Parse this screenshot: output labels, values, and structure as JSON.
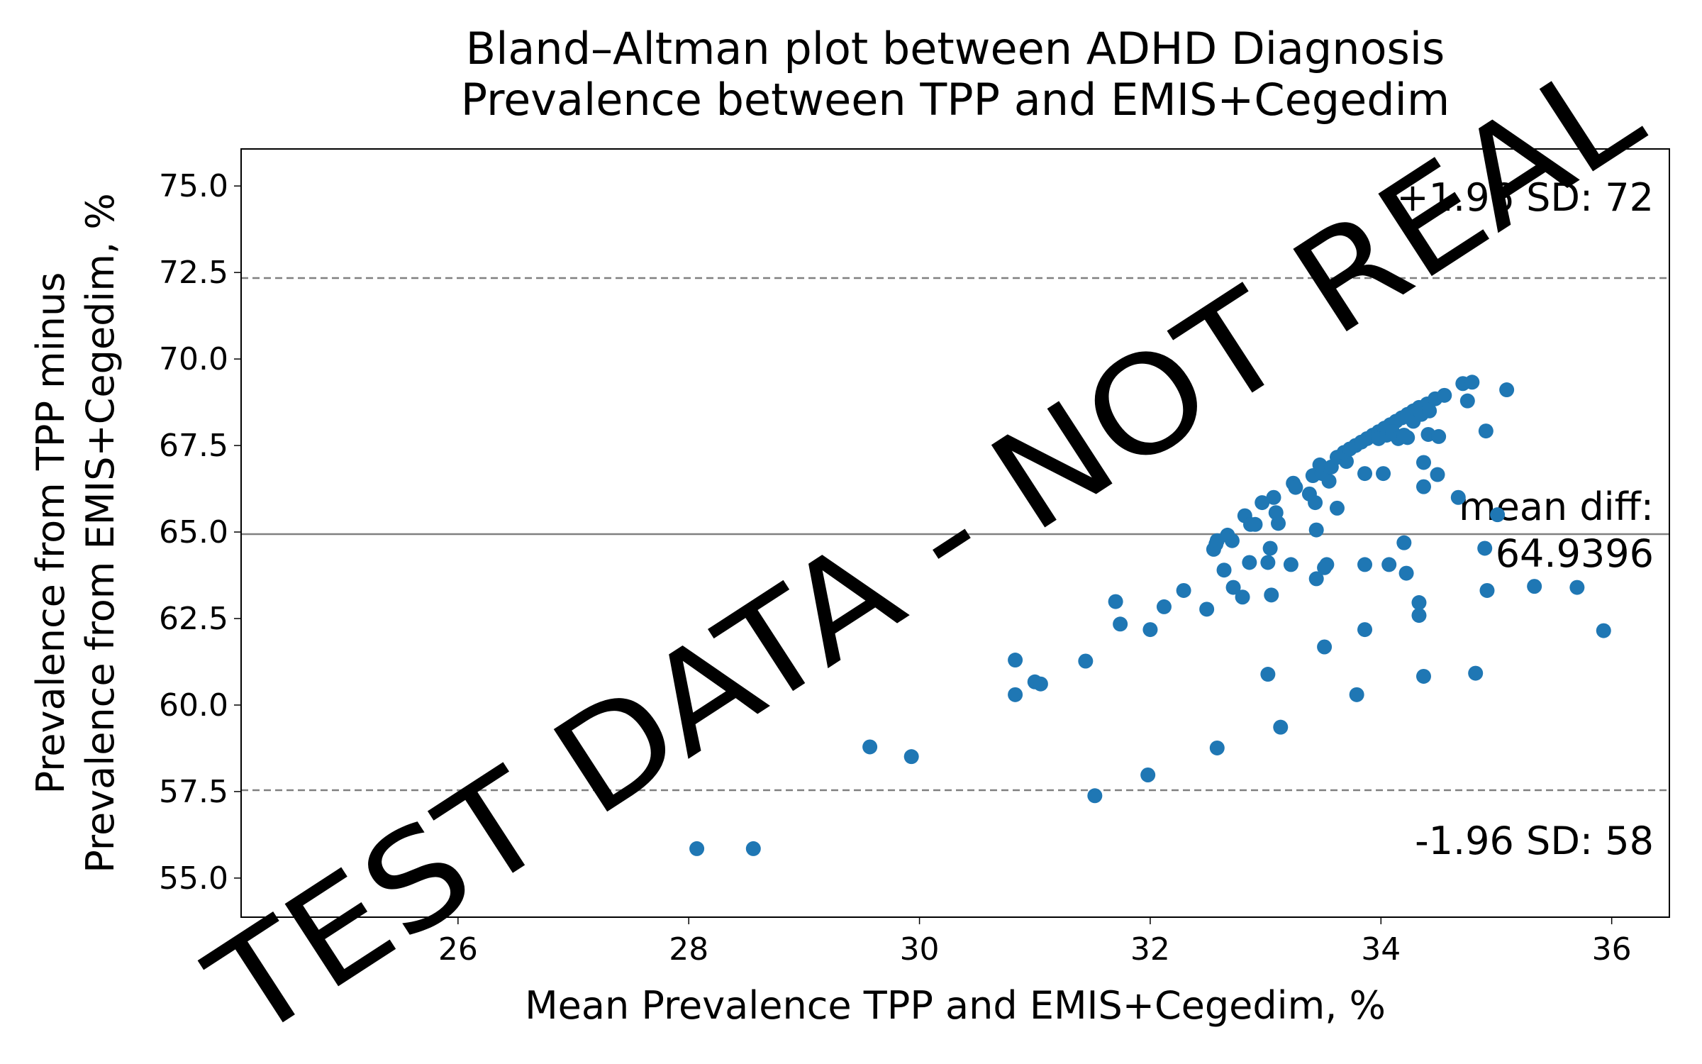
{
  "chart_data": {
    "type": "scatter",
    "title": [
      "Bland–Altman plot between ADHD Diagnosis",
      "Prevalence between TPP and EMIS+Cegedim"
    ],
    "x_label": "Mean Prevalence TPP and EMIS+Cegedim, %",
    "y_label": [
      "Prevalence from TPP minus",
      "Prevalence from EMIS+Cegedim, %"
    ],
    "watermark": "TEST DATA - NOT REAL",
    "color": "#1f77b4",
    "xlim": [
      24.12,
      36.5
    ],
    "ylim": [
      53.87,
      76.07
    ],
    "xticks": [
      26,
      28,
      30,
      32,
      34,
      36
    ],
    "yticks": [
      {
        "value": 55,
        "label": "55.0"
      },
      {
        "value": 57.5,
        "label": "57.5"
      },
      {
        "value": 60,
        "label": "60.0"
      },
      {
        "value": 62.5,
        "label": "62.5"
      },
      {
        "value": 65,
        "label": "65.0"
      },
      {
        "value": 67.5,
        "label": "67.5"
      },
      {
        "value": 70,
        "label": "70.0"
      },
      {
        "value": 72.5,
        "label": "72.5"
      },
      {
        "value": 75,
        "label": "75.0"
      }
    ],
    "reference_lines": [
      {
        "value": 72.34,
        "label": [
          "+1.96 SD: 72"
        ],
        "style": "dashed"
      },
      {
        "value": 64.9396,
        "label": [
          "mean diff:",
          "64.9396"
        ],
        "style": "solid"
      },
      {
        "value": 57.54,
        "label": [
          "-1.96 SD: 58"
        ],
        "style": "dashed"
      }
    ],
    "x": [
      28.07,
      28.56,
      29.57,
      29.93,
      30.83,
      30.83,
      31.0,
      31.05,
      31.44,
      31.52,
      31.7,
      31.74,
      32.0,
      31.98,
      32.12,
      32.29,
      32.49,
      32.58,
      32.55,
      32.57,
      32.58,
      32.64,
      32.67,
      32.71,
      32.72,
      32.8,
      32.82,
      32.87,
      32.91,
      32.86,
      32.97,
      33.02,
      33.04,
      33.02,
      33.05,
      33.07,
      33.09,
      33.11,
      33.13,
      33.22,
      33.24,
      33.26,
      33.38,
      33.41,
      33.43,
      33.44,
      33.44,
      33.49,
      33.47,
      33.51,
      33.51,
      33.53,
      33.55,
      33.57,
      33.62,
      33.62,
      33.7,
      33.79,
      33.86,
      33.86,
      33.86,
      34.02,
      34.07,
      34.2,
      34.22,
      34.23,
      34.33,
      34.33,
      34.37,
      34.37,
      34.37,
      34.41,
      34.49,
      34.5,
      34.67,
      34.75,
      34.71,
      34.79,
      34.82,
      34.91,
      34.9,
      34.92,
      35.01,
      35.09,
      35.33,
      35.7,
      35.93,
      33.68,
      33.73,
      33.78,
      33.83,
      33.88,
      33.93,
      33.98,
      34.03,
      34.08,
      34.13,
      34.18,
      34.23,
      34.28,
      34.33,
      34.4,
      34.47,
      34.55,
      33.98,
      34.05,
      34.1,
      34.15,
      34.2,
      34.28,
      34.35,
      34.42
    ],
    "values": [
      55.85,
      55.85,
      58.79,
      58.51,
      61.3,
      60.3,
      60.67,
      60.61,
      61.27,
      57.38,
      62.99,
      62.34,
      62.18,
      57.98,
      62.84,
      63.31,
      62.77,
      58.76,
      64.5,
      64.65,
      64.75,
      63.9,
      64.91,
      64.75,
      63.4,
      63.12,
      65.47,
      65.22,
      65.22,
      64.12,
      65.85,
      64.12,
      64.53,
      60.89,
      63.18,
      66.0,
      65.56,
      65.25,
      59.36,
      64.06,
      66.41,
      66.29,
      66.1,
      66.63,
      65.85,
      65.06,
      63.65,
      66.69,
      66.94,
      63.97,
      61.68,
      64.06,
      66.47,
      66.88,
      65.69,
      67.16,
      67.04,
      60.3,
      62.18,
      64.06,
      66.69,
      66.69,
      64.06,
      64.69,
      63.81,
      67.73,
      62.96,
      62.59,
      60.83,
      66.31,
      67.01,
      67.82,
      66.66,
      67.76,
      66.0,
      68.79,
      69.29,
      69.33,
      60.92,
      67.92,
      64.53,
      63.31,
      65.5,
      69.11,
      63.43,
      63.4,
      62.15,
      67.3,
      67.4,
      67.5,
      67.6,
      67.7,
      67.8,
      67.9,
      68.0,
      68.1,
      68.2,
      68.3,
      68.4,
      68.5,
      68.6,
      68.7,
      68.85,
      68.95,
      67.7,
      67.8,
      67.9,
      67.7,
      67.8,
      68.2,
      68.4,
      68.5
    ]
  }
}
